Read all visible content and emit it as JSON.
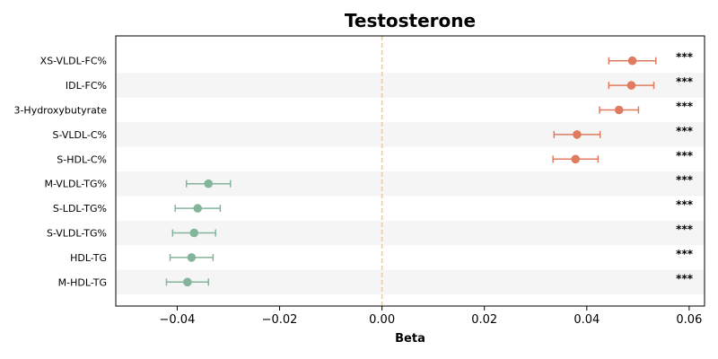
{
  "chart_data": {
    "type": "forest",
    "title": "Testosterone",
    "xlabel": "Beta",
    "ylabel": "",
    "xlim": [
      -0.052,
      0.063
    ],
    "xticks": [
      -0.04,
      -0.02,
      0.0,
      0.02,
      0.04,
      0.06
    ],
    "xtick_labels": [
      "−0.04",
      "−0.02",
      "0.00",
      "0.02",
      "0.04",
      "0.06"
    ],
    "reference_line": 0,
    "grid": false,
    "alternating_row_shading": true,
    "colors": {
      "positive": "#e07b5f",
      "negative": "#84b59c",
      "reference_line": "#f5c98a",
      "row_shade": "#f5f5f5"
    },
    "rows": [
      {
        "label": "XS-VLDL-FC%",
        "beta": 0.0489,
        "ci_low": 0.0443,
        "ci_high": 0.0535,
        "sig": "***"
      },
      {
        "label": "IDL-FC%",
        "beta": 0.0487,
        "ci_low": 0.0443,
        "ci_high": 0.0531,
        "sig": "***"
      },
      {
        "label": "3-Hydroxybutyrate",
        "beta": 0.0463,
        "ci_low": 0.0425,
        "ci_high": 0.0501,
        "sig": "***"
      },
      {
        "label": "S-VLDL-C%",
        "beta": 0.0381,
        "ci_low": 0.0336,
        "ci_high": 0.0426,
        "sig": "***"
      },
      {
        "label": "S-HDL-C%",
        "beta": 0.0378,
        "ci_low": 0.0334,
        "ci_high": 0.0422,
        "sig": "***"
      },
      {
        "label": "M-VLDL-TG%",
        "beta": -0.0339,
        "ci_low": -0.0382,
        "ci_high": -0.0296,
        "sig": "***"
      },
      {
        "label": "S-LDL-TG%",
        "beta": -0.036,
        "ci_low": -0.0404,
        "ci_high": -0.0316,
        "sig": "***"
      },
      {
        "label": "S-VLDL-TG%",
        "beta": -0.0367,
        "ci_low": -0.0409,
        "ci_high": -0.0325,
        "sig": "***"
      },
      {
        "label": "HDL-TG",
        "beta": -0.0372,
        "ci_low": -0.0414,
        "ci_high": -0.033,
        "sig": "***"
      },
      {
        "label": "M-HDL-TG",
        "beta": -0.038,
        "ci_low": -0.0421,
        "ci_high": -0.0339,
        "sig": "***"
      }
    ]
  }
}
